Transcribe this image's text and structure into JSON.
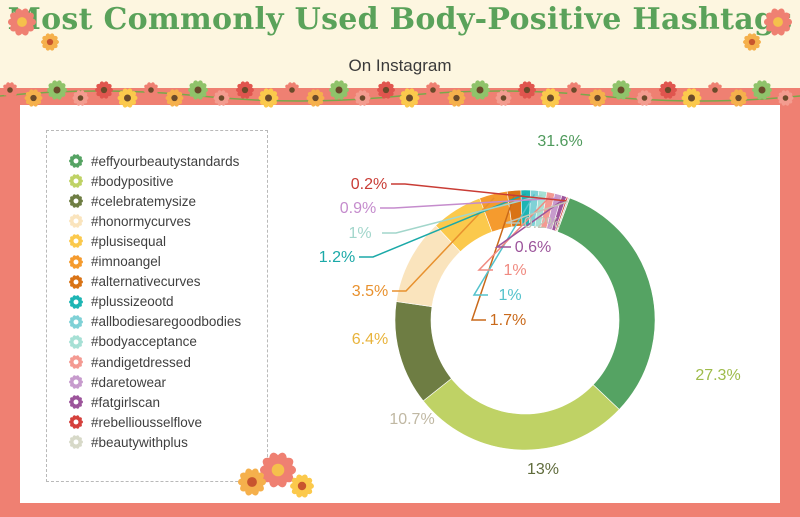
{
  "header": {
    "title": "Most Commonly Used Body-Positive Hashtags",
    "subtitle": "On Instagram"
  },
  "chart_data": {
    "type": "donut",
    "categories": [
      "#effyourbeautystandards",
      "#bodypositive",
      "#celebratemysize",
      "#honormycurves",
      "#plusisequal",
      "#imnoangel",
      "#alternativecurves",
      "#plussizeootd",
      "#allbodiesaregoodbodies",
      "#bodyacceptance",
      "#andigetdressed",
      "#daretowear",
      "#fatgirlscan",
      "#rebelliousselflove",
      "#beautywithplus"
    ],
    "values": [
      31.6,
      27.3,
      13,
      10.7,
      6.4,
      3.5,
      1.7,
      1.2,
      1,
      1,
      1,
      0.9,
      0.6,
      0.2,
      0.2
    ],
    "labels": [
      "31.6%",
      "27.3%",
      "13%",
      "10.7%",
      "6.4%",
      "3.5%",
      "1.7%",
      "1.2%",
      "1%",
      "1%",
      "1%",
      "0.9%",
      "0.6%",
      "0.2%",
      "0.2%"
    ],
    "colors": [
      "#55a363",
      "#bfd265",
      "#6e7d43",
      "#fae4bd",
      "#fbc94c",
      "#f59b2e",
      "#d97316",
      "#1db5b4",
      "#7fd1d6",
      "#a6e0d5",
      "#f49a92",
      "#c79bcd",
      "#9c549b",
      "#d5403c",
      "#d7d9c8"
    ],
    "label_colors": [
      "#4f9a5c",
      "#9ebb4a",
      "#5f6b3b",
      "#c0b8a3",
      "#e8b33b",
      "#e8912e",
      "#c9691a",
      "#1ba9a8",
      "#54c2cc",
      "#a2d6cb",
      "#f08a80",
      "#c58ccd",
      "#9c549b",
      "#c93c35",
      "#c4c6b6"
    ]
  }
}
